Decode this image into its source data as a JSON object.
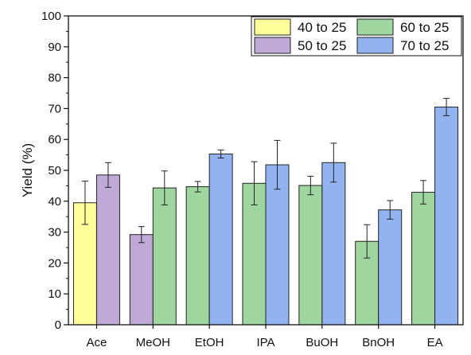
{
  "chart_data": {
    "type": "bar",
    "ylabel": "Yield (%)",
    "xlabel": "",
    "ylim": [
      0,
      100
    ],
    "yticks": [
      0,
      10,
      20,
      30,
      40,
      50,
      60,
      70,
      80,
      90,
      100
    ],
    "categories": [
      "Ace",
      "MeOH",
      "EtOH",
      "IPA",
      "BuOH",
      "BnOH",
      "EA"
    ],
    "legend_position": "top-right",
    "series": [
      {
        "name": "40 to 25",
        "color": "#ffff99",
        "values": [
          39.5,
          null,
          null,
          null,
          null,
          null,
          null
        ],
        "errors": [
          7.0,
          null,
          null,
          null,
          null,
          null,
          null
        ]
      },
      {
        "name": "50 to 25",
        "color": "#bfa9d6",
        "values": [
          48.5,
          29.2,
          null,
          null,
          null,
          null,
          null
        ],
        "errors": [
          4.0,
          2.6,
          null,
          null,
          null,
          null,
          null
        ]
      },
      {
        "name": "60 to 25",
        "color": "#9fd59f",
        "values": [
          null,
          44.3,
          44.7,
          45.8,
          45.1,
          27.0,
          42.9
        ],
        "errors": [
          null,
          5.5,
          1.7,
          7.0,
          3.0,
          5.4,
          3.8
        ]
      },
      {
        "name": "70 to 25",
        "color": "#93b3f0",
        "values": [
          null,
          null,
          55.3,
          51.8,
          52.5,
          37.2,
          70.5
        ],
        "errors": [
          null,
          null,
          1.3,
          7.9,
          6.3,
          3.0,
          2.8
        ]
      }
    ]
  }
}
